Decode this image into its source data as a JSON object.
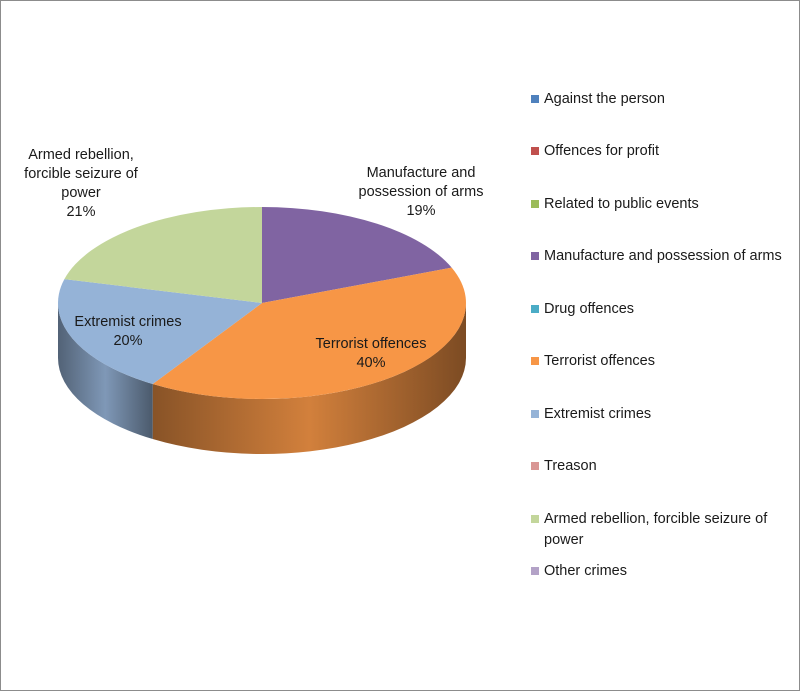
{
  "chart_data": {
    "type": "pie",
    "three_d": true,
    "legend_position": "right",
    "slices": [
      {
        "name": "Against the person",
        "value": 0,
        "color": "#4f81bd"
      },
      {
        "name": "Offences for profit",
        "value": 0,
        "color": "#c0504d"
      },
      {
        "name": "Related to public events",
        "value": 0,
        "color": "#9bbb59"
      },
      {
        "name": "Manufacture and possession of arms",
        "value": 19,
        "color": "#8064a2",
        "label": [
          "Manufacture and",
          "possession of arms",
          "19%"
        ]
      },
      {
        "name": "Drug offences",
        "value": 0,
        "color": "#4bacc6"
      },
      {
        "name": "Terrorist offences",
        "value": 40,
        "color": "#f79646",
        "label": [
          "Terrorist offences",
          "40%"
        ]
      },
      {
        "name": "Extremist crimes",
        "value": 20,
        "color": "#95b3d7",
        "label": [
          "Extremist crimes",
          "20%"
        ]
      },
      {
        "name": "Treason",
        "value": 0,
        "color": "#d99694"
      },
      {
        "name": "Armed rebellion,  forcible seizure of power",
        "value": 21,
        "color": "#c3d69b",
        "label": [
          "Armed rebellion,",
          "forcible seizure of",
          "power",
          "21%"
        ]
      },
      {
        "name": "Other crimes",
        "value": 0,
        "color": "#b3a2c7"
      }
    ]
  }
}
